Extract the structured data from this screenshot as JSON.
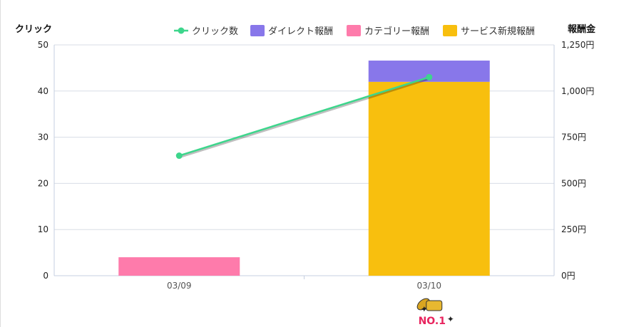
{
  "chart_data": {
    "type": "bar+line",
    "categories": [
      "03/09",
      "03/10"
    ],
    "left_axis": {
      "title": "クリック",
      "ylim": [
        0,
        50
      ],
      "ticks": [
        "0",
        "10",
        "20",
        "30",
        "40",
        "50"
      ]
    },
    "right_axis": {
      "title": "報酬金",
      "ylim": [
        0,
        1250
      ],
      "ticks": [
        "0円",
        "250円",
        "500円",
        "750円",
        "1,000円",
        "1,250円"
      ]
    },
    "series": [
      {
        "name": "クリック数",
        "type": "line",
        "axis": "left",
        "color": "#3dd68c",
        "values": [
          26,
          43
        ]
      },
      {
        "name": "ダイレクト報酬",
        "type": "bar",
        "stack": true,
        "axis": "right",
        "color": "#8877ea",
        "values": [
          0,
          115
        ]
      },
      {
        "name": "カテゴリー報酬",
        "type": "bar",
        "stack": true,
        "axis": "right",
        "color": "#fe7bab",
        "values": [
          100,
          0
        ]
      },
      {
        "name": "サービス新規報酬",
        "type": "bar",
        "stack": true,
        "axis": "right",
        "color": "#f8bf0e",
        "values": [
          0,
          1050
        ]
      }
    ],
    "legend_position": "top-right",
    "grid": true,
    "badge": {
      "category": "03/10",
      "text": "NO.1",
      "icon": "gold-coins-icon"
    }
  }
}
